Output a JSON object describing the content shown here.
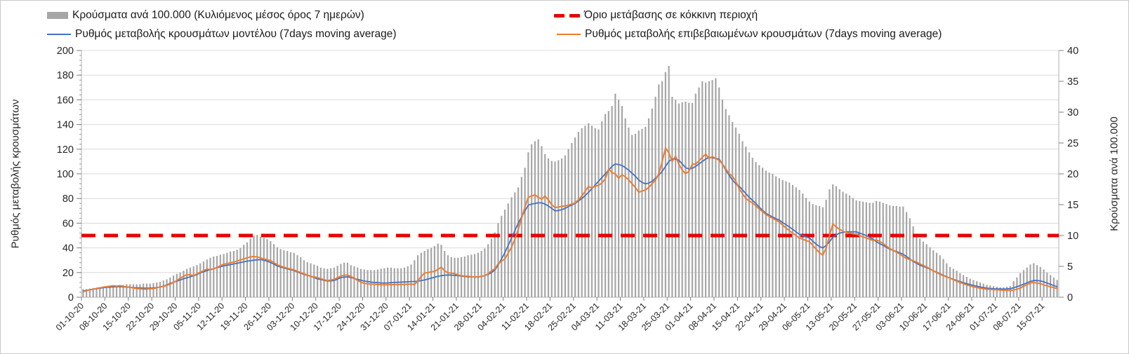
{
  "chart_data": {
    "type": "combo",
    "title": "",
    "legend_position": "top",
    "grid": "horizontal",
    "legend": [
      {
        "label": "Κρούσματα ανά 100.000 (Κυλιόμενος μέσος όρος 7 ημερών)",
        "swatch": "bar",
        "color": "#a6a6a6"
      },
      {
        "label": "Όριο μετάβασης σε κόκκινη περιοχή",
        "swatch": "dashes",
        "color": "#e60000"
      },
      {
        "label": "Ρυθμός μεταβολής κρουσμάτων μοντέλου (7days moving average)",
        "swatch": "line",
        "color": "#4472c4"
      },
      {
        "label": "Ρυθμός μεταβολής επιβεβαιωμένων κρουσμάτων (7days moving average)",
        "swatch": "line",
        "color": "#ed7d31"
      }
    ],
    "axes": {
      "left": {
        "title": "Ρυθμός μεταβολής κρουσμάτων",
        "min": 0,
        "max": 200,
        "step": 20,
        "minor_step": 4
      },
      "right": {
        "title": "Κρούσματα ανά 100.000",
        "min": 0,
        "max": 40,
        "step": 5
      },
      "x": {
        "tick_interval_days": 7,
        "tick_labels": [
          "01-10-20",
          "08-10-20",
          "15-10-20",
          "22-10-20",
          "29-10-20",
          "05-11-20",
          "12-11-20",
          "19-11-20",
          "26-11-20",
          "03-12-20",
          "10-12-20",
          "17-12-20",
          "24-12-20",
          "31-12-20",
          "07-01-21",
          "14-01-21",
          "21-01-21",
          "28-01-21",
          "04-02-21",
          "11-02-21",
          "18-02-21",
          "25-02-21",
          "04-03-21",
          "11-03-21",
          "18-03-21",
          "25-03-21",
          "01-04-21",
          "08-04-21",
          "15-04-21",
          "22-04-21",
          "29-04-21",
          "06-05-21",
          "13-05-21",
          "20-05-21",
          "27-05-21",
          "03-06-21",
          "10-06-21",
          "17-06-21",
          "24-06-21",
          "01-07-21",
          "08-07-21",
          "15-07-21"
        ]
      }
    },
    "threshold": {
      "name": "Όριο μετάβασης σε κόκκινη περιοχή",
      "axis": "left",
      "value": 50,
      "right_axis_value": 10,
      "color": "#e60000"
    },
    "series": [
      {
        "name": "Κρούσματα ανά 100.000 (Κυλιόμενος μέσος όρος 7 ημερών)",
        "type": "bar",
        "axis": "right",
        "color": "#a6a6a6",
        "values": [
          1.3,
          1.3,
          1.4,
          1.5,
          1.5,
          1.6,
          1.6,
          1.7,
          1.8,
          1.8,
          1.9,
          2.0,
          2.0,
          2.1,
          2.1,
          2.1,
          2.1,
          2.1,
          2.2,
          2.2,
          2.2,
          2.3,
          2.4,
          2.5,
          2.7,
          2.9,
          3.2,
          3.5,
          3.8,
          4.0,
          4.3,
          4.6,
          4.8,
          5.0,
          5.2,
          5.5,
          5.8,
          6.1,
          6.4,
          6.6,
          6.7,
          6.9,
          7.0,
          7.2,
          7.4,
          7.5,
          7.7,
          8.0,
          8.5,
          8.9,
          9.5,
          10.0,
          10.1,
          9.8,
          9.6,
          9.4,
          9.1,
          8.6,
          8.1,
          7.8,
          7.6,
          7.5,
          7.3,
          7.2,
          6.8,
          6.5,
          6.0,
          5.7,
          5.5,
          5.3,
          5.1,
          4.8,
          4.7,
          4.6,
          4.7,
          4.8,
          5.1,
          5.4,
          5.6,
          5.6,
          5.2,
          5.0,
          4.8,
          4.6,
          4.5,
          4.4,
          4.4,
          4.4,
          4.5,
          4.6,
          4.7,
          4.8,
          4.8,
          4.7,
          4.7,
          4.7,
          4.8,
          5.0,
          5.3,
          6.0,
          6.8,
          7.2,
          7.5,
          7.8,
          8.0,
          8.3,
          8.7,
          8.5,
          7.5,
          6.8,
          6.5,
          6.4,
          6.4,
          6.5,
          6.6,
          6.8,
          6.9,
          7.0,
          7.2,
          7.5,
          7.9,
          8.6,
          9.5,
          10.5,
          12.0,
          13.2,
          14.2,
          15.2,
          16.2,
          17.0,
          17.8,
          19.5,
          21.0,
          23.5,
          24.8,
          25.3,
          25.6,
          24.5,
          23.2,
          22.5,
          22.1,
          22.0,
          22.2,
          22.5,
          23.0,
          24.0,
          25.0,
          25.9,
          26.8,
          27.4,
          27.8,
          28.2,
          27.8,
          27.4,
          27.2,
          28.5,
          29.7,
          30.2,
          31.0,
          33.0,
          32.0,
          31.0,
          29.0,
          27.5,
          26.3,
          26.5,
          27.0,
          27.3,
          27.6,
          29.0,
          30.6,
          32.5,
          34.5,
          35.0,
          36.5,
          37.5,
          32.5,
          32.0,
          31.4,
          31.6,
          31.7,
          31.5,
          31.5,
          33.0,
          34.0,
          35.0,
          34.8,
          35.0,
          35.2,
          35.5,
          34.0,
          32.0,
          30.5,
          29.5,
          28.4,
          27.5,
          26.5,
          25.3,
          24.4,
          23.5,
          22.6,
          21.9,
          21.4,
          21.0,
          20.5,
          20.2,
          20.0,
          19.6,
          19.3,
          19.0,
          18.8,
          18.6,
          18.2,
          17.8,
          17.4,
          16.8,
          16.1,
          15.5,
          15.1,
          14.9,
          14.8,
          14.6,
          15.8,
          17.5,
          18.3,
          18.0,
          17.5,
          17.1,
          16.8,
          16.5,
          16.1,
          15.7,
          15.6,
          15.5,
          15.4,
          15.3,
          15.3,
          15.6,
          15.5,
          15.3,
          15.1,
          14.9,
          14.8,
          14.8,
          14.7,
          14.7,
          13.8,
          12.8,
          11.5,
          10.3,
          9.5,
          9.0,
          8.6,
          8.1,
          7.6,
          7.2,
          6.8,
          6.2,
          5.5,
          4.9,
          4.6,
          4.3,
          3.9,
          3.6,
          3.3,
          3.0,
          2.8,
          2.6,
          2.4,
          2.2,
          2.0,
          1.9,
          1.8,
          1.7,
          1.6,
          1.6,
          1.7,
          1.8,
          2.6,
          3.2,
          3.9,
          4.4,
          4.8,
          5.3,
          5.5,
          5.2,
          4.9,
          4.5,
          4.0,
          3.6,
          3.2,
          2.8
        ]
      },
      {
        "name": "Ρυθμός μεταβολής κρουσμάτων μοντέλου (7days moving average)",
        "type": "line",
        "axis": "left",
        "color": "#4472c4",
        "values": [
          5.0,
          5.5,
          6.0,
          6.5,
          7.0,
          7.3,
          7.7,
          8.0,
          8.2,
          8.4,
          8.5,
          8.5,
          8.4,
          8.2,
          8.0,
          7.8,
          7.6,
          7.5,
          7.4,
          7.3,
          7.4,
          7.5,
          7.8,
          8.3,
          9.0,
          10.0,
          11.2,
          12.1,
          13.0,
          14.0,
          15.0,
          15.8,
          16.6,
          17.4,
          18.4,
          19.7,
          20.7,
          21.6,
          22.4,
          23.2,
          24.0,
          24.7,
          25.4,
          25.9,
          26.4,
          27.0,
          27.5,
          28.1,
          28.7,
          29.2,
          29.6,
          30.0,
          30.3,
          30.5,
          30.0,
          29.2,
          28.2,
          26.8,
          25.4,
          24.5,
          23.7,
          23.0,
          22.3,
          21.6,
          20.5,
          19.5,
          18.5,
          17.7,
          17.0,
          16.0,
          14.9,
          14.3,
          13.7,
          13.1,
          13.3,
          13.5,
          14.7,
          15.9,
          16.3,
          16.5,
          16.0,
          15.2,
          14.5,
          13.8,
          13.1,
          12.7,
          12.3,
          12.0,
          11.8,
          11.6,
          11.5,
          11.6,
          11.8,
          12.0,
          12.1,
          12.2,
          12.4,
          12.5,
          12.7,
          12.8,
          13.0,
          13.5,
          14.0,
          14.7,
          15.5,
          16.2,
          17.0,
          17.5,
          17.8,
          18.0,
          17.9,
          17.7,
          17.5,
          17.2,
          16.8,
          16.5,
          16.5,
          16.5,
          16.5,
          17.0,
          17.5,
          18.5,
          20.0,
          22.0,
          26.0,
          31.0,
          36.0,
          42.0,
          48.0,
          54.0,
          60.0,
          65.0,
          70.0,
          74.6,
          75.5,
          76.0,
          76.5,
          76.5,
          75.5,
          74.0,
          72.0,
          70.0,
          70.3,
          71.0,
          72.0,
          73.5,
          74.7,
          76.0,
          78.0,
          80.0,
          82.5,
          85.0,
          88.0,
          91.0,
          94.0,
          97.0,
          100.0,
          103.0,
          106.0,
          108.0,
          107.5,
          106.8,
          105.0,
          103.0,
          100.5,
          98.0,
          95.0,
          93.0,
          92.0,
          92.5,
          94.0,
          96.5,
          99.0,
          102.0,
          106.0,
          110.0,
          112.0,
          112.0,
          111.0,
          108.0,
          105.0,
          104.0,
          104.5,
          106.0,
          108.0,
          110.0,
          112.0,
          113.4,
          113.0,
          112.5,
          112.0,
          108.0,
          103.0,
          99.0,
          95.0,
          92.0,
          90.0,
          87.0,
          84.0,
          81.0,
          78.5,
          76.0,
          73.0,
          70.5,
          68.0,
          66.5,
          65.0,
          63.7,
          62.5,
          60.5,
          58.8,
          57.0,
          55.0,
          53.0,
          51.0,
          50.0,
          49.0,
          48.0,
          45.5,
          43.0,
          41.0,
          40.0,
          42.0,
          45.0,
          48.5,
          50.5,
          52.0,
          52.5,
          53.0,
          53.0,
          53.0,
          53.0,
          52.0,
          51.0,
          50.0,
          48.5,
          47.0,
          45.0,
          43.4,
          42.0,
          40.5,
          39.0,
          38.0,
          37.0,
          36.0,
          34.8,
          33.0,
          31.0,
          29.0,
          27.5,
          26.0,
          25.0,
          24.0,
          22.8,
          21.5,
          20.3,
          19.0,
          17.8,
          16.6,
          15.5,
          14.5,
          13.5,
          12.6,
          11.8,
          11.0,
          10.2,
          9.5,
          8.9,
          8.3,
          7.8,
          7.4,
          7.1,
          6.9,
          6.8,
          6.7,
          6.6,
          6.7,
          7.0,
          7.6,
          8.5,
          9.5,
          10.5,
          11.7,
          12.8,
          13.5,
          13.5,
          13.2,
          12.5,
          11.5,
          10.5,
          9.5,
          8.5
        ]
      },
      {
        "name": "Ρυθμός μεταβολής επιβεβαιωμένων κρουσμάτων (7days moving average)",
        "type": "line",
        "axis": "left",
        "color": "#ed7d31",
        "values": [
          4.5,
          5.2,
          6.0,
          6.3,
          7.2,
          7.6,
          8.2,
          8.5,
          9.0,
          9.3,
          9.0,
          9.4,
          8.8,
          8.4,
          8.0,
          7.5,
          7.0,
          6.8,
          6.5,
          6.6,
          6.9,
          7.0,
          7.6,
          8.4,
          8.8,
          9.6,
          10.5,
          12.0,
          13.5,
          15.5,
          17.0,
          18.4,
          18.0,
          17.6,
          19.0,
          20.3,
          21.5,
          22.9,
          22.3,
          23.0,
          24.2,
          25.5,
          26.7,
          27.2,
          27.9,
          28.5,
          29.3,
          30.2,
          31.1,
          32.0,
          32.6,
          33.0,
          32.6,
          32.0,
          31.0,
          30.4,
          29.7,
          28.0,
          26.3,
          25.2,
          24.3,
          23.5,
          22.8,
          22.2,
          21.0,
          20.0,
          19.0,
          18.0,
          17.0,
          16.5,
          15.9,
          15.0,
          14.2,
          13.5,
          14.0,
          14.5,
          15.8,
          17.2,
          17.8,
          18.0,
          16.8,
          15.5,
          13.5,
          12.3,
          11.2,
          10.9,
          10.7,
          10.5,
          10.3,
          10.1,
          10.0,
          10.1,
          10.2,
          10.3,
          10.3,
          10.4,
          10.4,
          10.5,
          10.6,
          10.3,
          13.0,
          17.0,
          19.5,
          20.0,
          20.5,
          21.0,
          22.5,
          24.4,
          21.5,
          19.7,
          19.5,
          19.2,
          18.0,
          17.5,
          17.2,
          17.0,
          16.6,
          16.4,
          16.3,
          16.8,
          17.5,
          19.0,
          21.5,
          23.0,
          27.0,
          29.2,
          31.0,
          35.8,
          40.5,
          47.0,
          55.0,
          64.0,
          73.0,
          81.0,
          82.0,
          83.0,
          81.0,
          79.5,
          82.0,
          79.0,
          75.0,
          72.7,
          73.0,
          73.7,
          74.0,
          74.5,
          75.5,
          76.5,
          79.0,
          82.0,
          86.0,
          89.8,
          88.5,
          90.0,
          90.7,
          92.6,
          96.0,
          104.0,
          101.0,
          100.0,
          96.4,
          99.3,
          97.5,
          95.0,
          92.0,
          89.0,
          85.1,
          86.0,
          87.0,
          89.0,
          92.0,
          95.0,
          100.0,
          110.0,
          121.0,
          117.0,
          110.0,
          114.4,
          107.8,
          103.0,
          100.2,
          102.0,
          107.8,
          108.0,
          110.5,
          113.4,
          116.0,
          112.5,
          114.0,
          112.5,
          111.0,
          108.0,
          104.0,
          100.2,
          98.0,
          94.0,
          88.0,
          84.0,
          80.0,
          78.0,
          76.5,
          74.0,
          71.5,
          69.5,
          67.0,
          65.5,
          64.0,
          62.5,
          61.0,
          58.5,
          56.0,
          54.0,
          52.0,
          50.0,
          48.0,
          47.0,
          46.0,
          45.0,
          42.0,
          39.0,
          36.0,
          34.1,
          40.0,
          50.0,
          59.5,
          57.0,
          55.0,
          53.5,
          52.5,
          52.0,
          51.5,
          51.0,
          50.0,
          49.0,
          48.0,
          47.0,
          46.0,
          46.5,
          45.3,
          43.5,
          41.5,
          39.5,
          38.0,
          36.5,
          35.0,
          33.0,
          31.5,
          30.5,
          29.5,
          28.5,
          27.0,
          25.8,
          24.5,
          23.0,
          21.5,
          20.0,
          18.5,
          17.5,
          16.5,
          15.5,
          14.2,
          13.0,
          12.0,
          11.0,
          10.0,
          9.2,
          8.5,
          7.9,
          7.3,
          6.9,
          6.5,
          6.3,
          6.1,
          6.0,
          5.8,
          5.6,
          5.5,
          5.5,
          5.8,
          6.5,
          7.4,
          9.0,
          10.2,
          11.5,
          12.0,
          11.5,
          11.0,
          10.0,
          9.2,
          8.5,
          7.7,
          7.0
        ]
      }
    ]
  }
}
